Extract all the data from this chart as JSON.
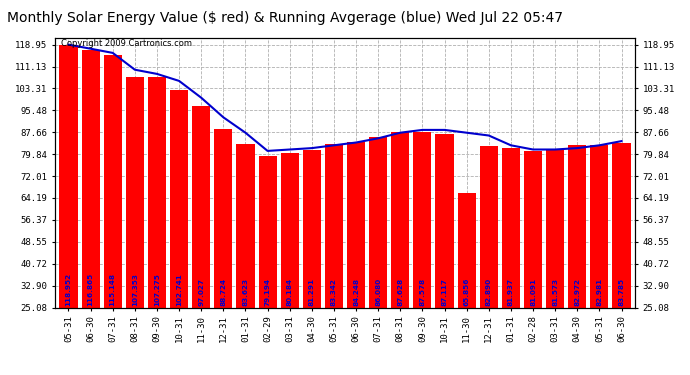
{
  "title": "Monthly Solar Energy Value ($ red) & Running Avgerage (blue) Wed Jul 22 05:47",
  "copyright": "Copyright 2009 Cartronics.com",
  "categories": [
    "05-31",
    "06-30",
    "07-31",
    "08-31",
    "09-30",
    "10-31",
    "11-30",
    "12-31",
    "01-31",
    "02-29",
    "03-31",
    "04-30",
    "05-31",
    "06-30",
    "07-31",
    "08-31",
    "09-30",
    "10-31",
    "11-30",
    "12-31",
    "01-31",
    "02-28",
    "03-31",
    "04-30",
    "05-31",
    "06-30"
  ],
  "bar_values": [
    118.952,
    116.865,
    115.148,
    107.353,
    107.275,
    102.741,
    97.027,
    88.724,
    83.623,
    79.194,
    80.184,
    81.291,
    83.342,
    84.248,
    86.08,
    87.628,
    87.578,
    87.117,
    65.856,
    82.89,
    81.937,
    81.091,
    81.573,
    82.972,
    82.981,
    83.785
  ],
  "running_avg": [
    118.95,
    117.5,
    116.0,
    110.0,
    108.5,
    106.0,
    100.0,
    93.0,
    87.5,
    81.0,
    81.5,
    82.0,
    83.0,
    84.0,
    85.5,
    87.5,
    88.5,
    88.5,
    87.5,
    86.5,
    83.0,
    81.5,
    81.5,
    82.0,
    83.0,
    84.5
  ],
  "bar_color": "#ff0000",
  "line_color": "#0000cd",
  "background_color": "#ffffff",
  "plot_bg_color": "#ffffff",
  "grid_color": "#b0b0b0",
  "bar_label_color": "#0000cc",
  "ytick_labels": [
    "25.08",
    "32.90",
    "40.72",
    "48.55",
    "56.37",
    "64.19",
    "72.01",
    "79.84",
    "87.66",
    "95.48",
    "103.31",
    "111.13",
    "118.95"
  ],
  "ytick_values": [
    25.08,
    32.9,
    40.72,
    48.55,
    56.37,
    64.19,
    72.01,
    79.84,
    87.66,
    95.48,
    103.31,
    111.13,
    118.95
  ],
  "ymin": 25.08,
  "ymax": 121.5,
  "title_fontsize": 10,
  "bar_label_fontsize": 5.2,
  "tick_fontsize": 6.5,
  "copyright_fontsize": 6.0,
  "bar_label_values": [
    "118.952",
    "116.865",
    "115.148",
    "107.353",
    "107.275",
    "102.741",
    "97.027",
    "88.724",
    "83.623",
    "79.194",
    "80.184",
    "81.291",
    "83.342",
    "84.248",
    "86.080",
    "87.628",
    "87.578",
    "87.117",
    "65.856",
    "82.890",
    "81.937",
    "81.091",
    "81.573",
    "82.972",
    "82.981",
    "83.785"
  ]
}
